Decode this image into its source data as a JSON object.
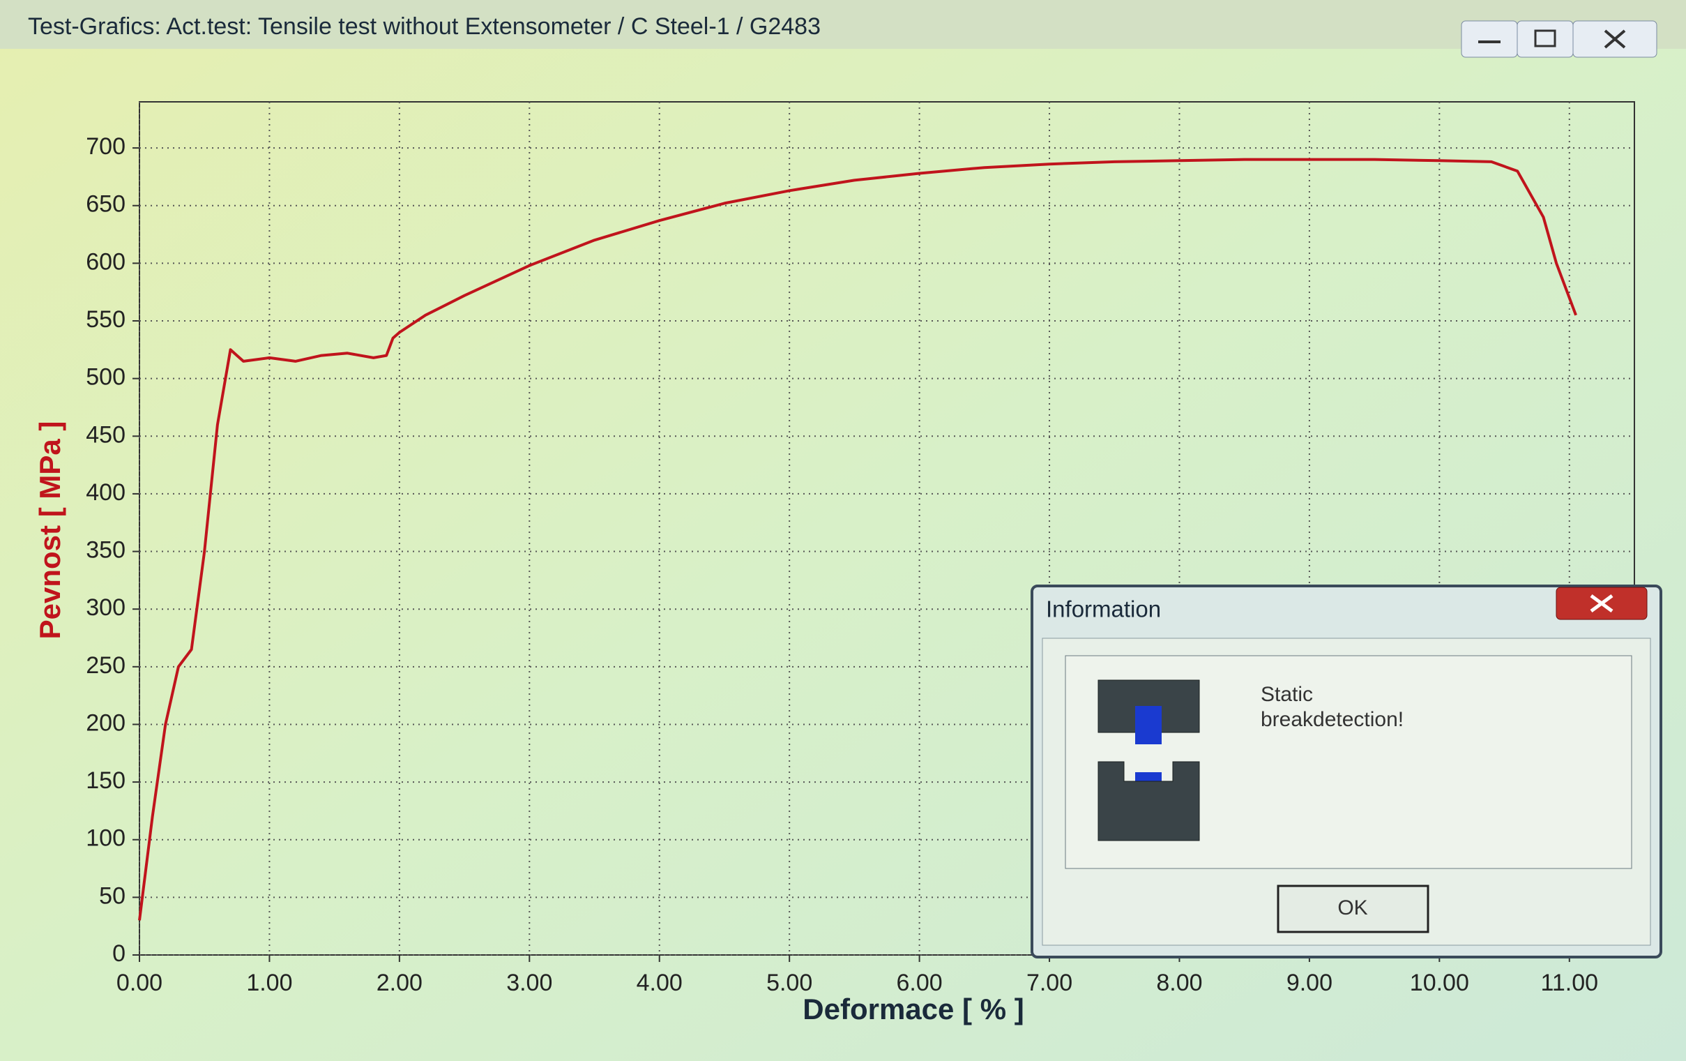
{
  "window": {
    "title": "Test-Grafics: Act.test: Tensile test without  Extensometer / C Steel-1 / G2483"
  },
  "chart_data": {
    "type": "line",
    "x_label": "Deformace [ % ]",
    "y_label": "Pevnost [ MPa ]",
    "x": [
      0,
      0.1,
      0.2,
      0.3,
      0.4,
      0.5,
      0.6,
      0.7,
      0.75,
      0.8,
      1.0,
      1.2,
      1.4,
      1.6,
      1.8,
      1.9,
      1.95,
      2.0,
      2.2,
      2.5,
      3.0,
      3.5,
      4.0,
      4.5,
      5.0,
      5.5,
      6.0,
      6.5,
      7.0,
      7.5,
      8.0,
      8.5,
      9.0,
      9.5,
      10.0,
      10.4,
      10.6,
      10.8,
      10.9,
      11.05
    ],
    "values": [
      30,
      120,
      200,
      250,
      265,
      350,
      460,
      525,
      520,
      515,
      518,
      515,
      520,
      522,
      518,
      520,
      535,
      540,
      555,
      572,
      598,
      620,
      637,
      652,
      663,
      672,
      678,
      683,
      686,
      688,
      689,
      690,
      690,
      690,
      689,
      688,
      680,
      640,
      600,
      555
    ],
    "color": "#c0141c",
    "xlim": [
      0,
      11.5
    ],
    "ylim": [
      0,
      740
    ],
    "xticks": [
      {
        "value": 0,
        "label": "0.00"
      },
      {
        "value": 1,
        "label": "1.00"
      },
      {
        "value": 2,
        "label": "2.00"
      },
      {
        "value": 3,
        "label": "3.00"
      },
      {
        "value": 4,
        "label": "4.00"
      },
      {
        "value": 5,
        "label": "5.00"
      },
      {
        "value": 6,
        "label": "6.00"
      },
      {
        "value": 7,
        "label": "7.00"
      },
      {
        "value": 8,
        "label": "8.00"
      },
      {
        "value": 9,
        "label": "9.00"
      },
      {
        "value": 10,
        "label": "10.00"
      },
      {
        "value": 11,
        "label": "11.00"
      }
    ],
    "yticks": [
      0,
      50,
      100,
      150,
      200,
      250,
      300,
      350,
      400,
      450,
      500,
      550,
      600,
      650,
      700
    ],
    "grid": true
  },
  "dialog": {
    "title": "Information",
    "message": [
      "Static",
      "breakdetection!"
    ],
    "button": "OK"
  }
}
